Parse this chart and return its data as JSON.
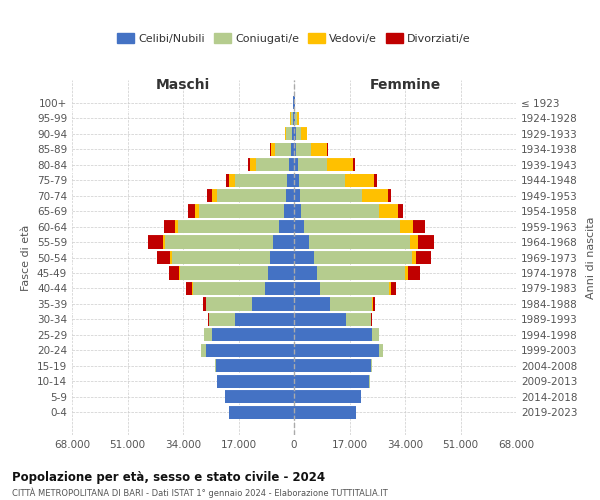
{
  "age_groups": [
    "100+",
    "95-99",
    "90-94",
    "85-89",
    "80-84",
    "75-79",
    "70-74",
    "65-69",
    "60-64",
    "55-59",
    "50-54",
    "45-49",
    "40-44",
    "35-39",
    "30-34",
    "25-29",
    "20-24",
    "15-19",
    "10-14",
    "5-9",
    "0-4"
  ],
  "birth_years": [
    "≤ 1923",
    "1924-1928",
    "1929-1933",
    "1934-1938",
    "1939-1943",
    "1944-1948",
    "1949-1953",
    "1954-1958",
    "1959-1963",
    "1964-1968",
    "1969-1973",
    "1974-1978",
    "1979-1983",
    "1984-1988",
    "1989-1993",
    "1994-1998",
    "1999-2003",
    "2004-2008",
    "2009-2013",
    "2014-2018",
    "2019-2023"
  ],
  "male": {
    "celibi": [
      200,
      400,
      500,
      800,
      1500,
      2000,
      2500,
      3000,
      4500,
      6500,
      7500,
      8000,
      9000,
      13000,
      18000,
      25000,
      27000,
      24000,
      23500,
      21000,
      20000
    ],
    "coniugati": [
      150,
      600,
      1800,
      5000,
      10000,
      16000,
      21000,
      26000,
      31000,
      33000,
      30000,
      27000,
      22000,
      14000,
      8000,
      2500,
      1500,
      300,
      200,
      100,
      50
    ],
    "vedovi": [
      50,
      200,
      500,
      1200,
      2000,
      1800,
      1500,
      1200,
      800,
      600,
      400,
      300,
      200,
      100,
      50,
      30,
      20,
      10,
      10,
      5,
      5
    ],
    "divorziati": [
      5,
      30,
      80,
      200,
      600,
      1000,
      1500,
      2200,
      3500,
      4500,
      4000,
      3000,
      1800,
      800,
      400,
      150,
      80,
      30,
      15,
      10,
      5
    ]
  },
  "female": {
    "nubili": [
      200,
      350,
      500,
      700,
      1200,
      1500,
      1800,
      2000,
      3000,
      4500,
      6000,
      7000,
      8000,
      11000,
      16000,
      24000,
      26000,
      23500,
      23000,
      20500,
      19000
    ],
    "coniugate": [
      100,
      500,
      1500,
      4500,
      9000,
      14000,
      19000,
      24000,
      29500,
      31000,
      30000,
      27000,
      21000,
      13000,
      7500,
      2000,
      1200,
      250,
      150,
      80,
      40
    ],
    "vedove": [
      100,
      600,
      2000,
      5000,
      8000,
      9000,
      8000,
      6000,
      4000,
      2500,
      1500,
      1000,
      600,
      300,
      150,
      60,
      30,
      10,
      8,
      5,
      5
    ],
    "divorziate": [
      5,
      30,
      80,
      200,
      500,
      800,
      1000,
      1500,
      3500,
      5000,
      4500,
      3500,
      1500,
      600,
      300,
      100,
      60,
      20,
      10,
      8,
      5
    ]
  },
  "colors": {
    "celibi_nubili": "#4472c4",
    "coniugati": "#b5cc8e",
    "vedovi": "#ffc000",
    "divorziati": "#c00000"
  },
  "xlim": 68000,
  "title": "Popolazione per età, sesso e stato civile - 2024",
  "subtitle": "CITTÀ METROPOLITANA DI BARI - Dati ISTAT 1° gennaio 2024 - Elaborazione TUTTITALIA.IT",
  "xlabel_left": "Maschi",
  "xlabel_right": "Femmine",
  "ylabel_left": "Fasce di età",
  "ylabel_right": "Anni di nascita"
}
